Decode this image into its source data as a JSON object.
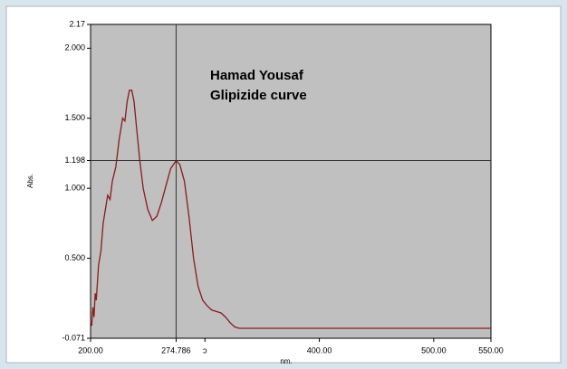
{
  "chart_data": {
    "type": "line",
    "annotations": [
      "Hamad Yousaf",
      "Glipizide curve"
    ],
    "x_label": "nm.",
    "y_label": "Abs.",
    "x": [
      200,
      201,
      202,
      203,
      204,
      205,
      207,
      209,
      211,
      213,
      215,
      217,
      219,
      222,
      225,
      228,
      230,
      232,
      234,
      236,
      238,
      240,
      243,
      246,
      250,
      254,
      258,
      262,
      266,
      270,
      274.786,
      278,
      282,
      286,
      290,
      294,
      298,
      302,
      306,
      310,
      314,
      318,
      322,
      326,
      330,
      340,
      400,
      500,
      550
    ],
    "series": [
      {
        "name": "Glipizide",
        "color": "#8b1a1a",
        "values": [
          0.05,
          0.02,
          0.15,
          0.08,
          0.25,
          0.2,
          0.45,
          0.55,
          0.75,
          0.85,
          0.95,
          0.92,
          1.05,
          1.15,
          1.35,
          1.5,
          1.48,
          1.62,
          1.7,
          1.7,
          1.62,
          1.45,
          1.2,
          1.0,
          0.85,
          0.77,
          0.8,
          0.9,
          1.02,
          1.14,
          1.198,
          1.17,
          1.05,
          0.8,
          0.5,
          0.3,
          0.2,
          0.16,
          0.13,
          0.12,
          0.11,
          0.08,
          0.04,
          0.01,
          0.0,
          0.0,
          0.0,
          0.0,
          0.0
        ]
      }
    ],
    "xlim": [
      200,
      550
    ],
    "xticks": [
      {
        "value": 200,
        "label": "200.00"
      },
      274.786,
      {
        "value": 300,
        "label": "ɔ"
      },
      {
        "value": 400,
        "label": "400.00"
      },
      {
        "value": 500,
        "label": "500.00"
      },
      {
        "value": 550,
        "label": "550.00"
      }
    ],
    "ylim": [
      -0.071,
      2.17
    ],
    "yticks": [
      -0.071,
      {
        "value": 0.5,
        "label": "0.500"
      },
      {
        "value": 1,
        "label": "1.000"
      },
      1.198,
      {
        "value": 1.5,
        "label": "1.500"
      },
      {
        "value": 2,
        "label": "2.000"
      },
      2.17
    ],
    "cursor_x_tick": 1,
    "cursor_y_tick": 3,
    "plot_color": "#c0c0c0"
  }
}
